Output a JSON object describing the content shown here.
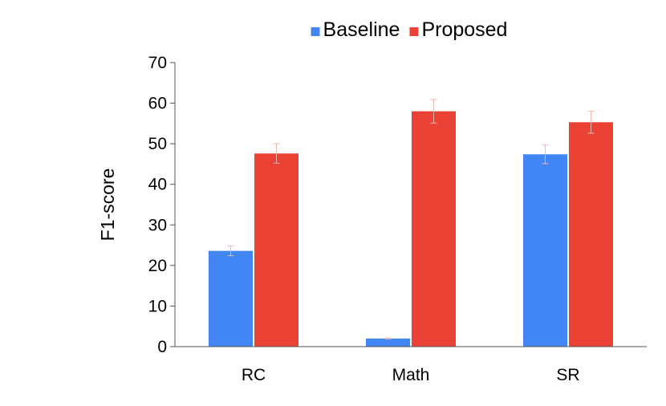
{
  "chart_data": {
    "type": "bar",
    "title": "",
    "xlabel": "",
    "ylabel": "F1-score",
    "ylim": [
      0,
      70
    ],
    "yticks": [
      0,
      10,
      20,
      30,
      40,
      50,
      60,
      70
    ],
    "categories": [
      "RC",
      "Math",
      "SR"
    ],
    "series": [
      {
        "name": "Baseline",
        "color": "#4285F4",
        "values": [
          23.6,
          2.0,
          47.4
        ],
        "error": [
          1.2,
          0.1,
          2.3
        ]
      },
      {
        "name": "Proposed",
        "color": "#EA4335",
        "values": [
          47.6,
          58.0,
          55.3
        ],
        "error": [
          2.4,
          2.9,
          2.7
        ]
      }
    ],
    "legend": "top-center",
    "grid": false,
    "error_bar_color": "#F2B5AE"
  }
}
